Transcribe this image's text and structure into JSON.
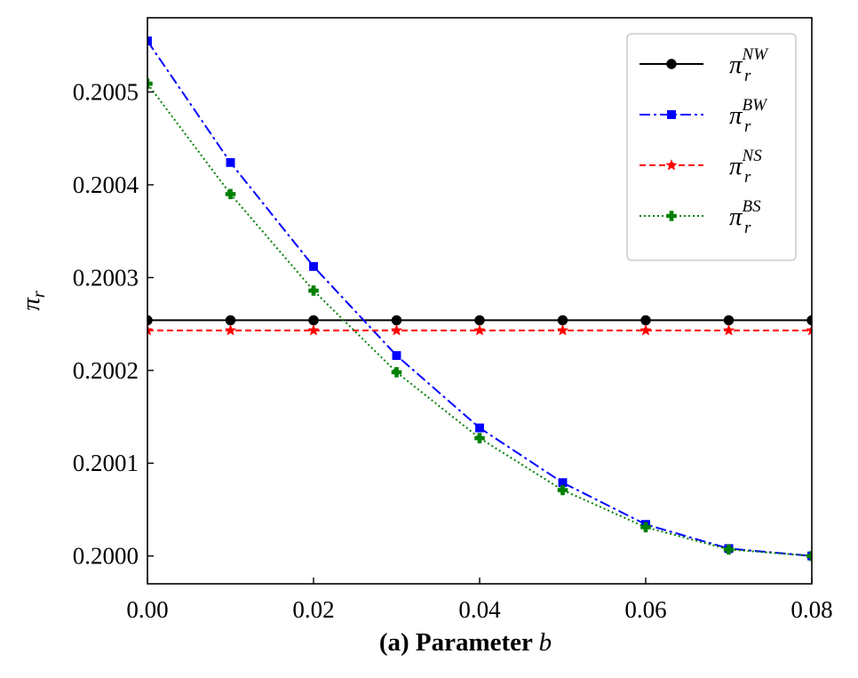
{
  "chart_data": {
    "type": "line",
    "xlabel_prefix": "(a) Parameter ",
    "xlabel_var": "b",
    "ylabel_base": "π",
    "ylabel_sub": "r",
    "xlim": [
      0.0,
      0.08
    ],
    "ylim": [
      0.19997,
      0.20058
    ],
    "xticks": [
      0.0,
      0.02,
      0.04,
      0.06,
      0.08
    ],
    "xtick_labels": [
      "0.00",
      "0.02",
      "0.04",
      "0.06",
      "0.08"
    ],
    "yticks": [
      0.2,
      0.2001,
      0.2002,
      0.2003,
      0.2004,
      0.2005
    ],
    "ytick_labels": [
      "0.2000",
      "0.2001",
      "0.2002",
      "0.2003",
      "0.2004",
      "0.2005"
    ],
    "grid": false,
    "legend_position": "top-right",
    "x": [
      0.0,
      0.01,
      0.02,
      0.03,
      0.04,
      0.05,
      0.06,
      0.07,
      0.08
    ],
    "series": [
      {
        "name_base": "π",
        "name_sub": "r",
        "name_sup": "NW",
        "color": "#000000",
        "dash": "",
        "marker": "circle",
        "values": [
          0.200254,
          0.200254,
          0.200254,
          0.200254,
          0.200254,
          0.200254,
          0.200254,
          0.200254,
          0.200254
        ]
      },
      {
        "name_base": "π",
        "name_sub": "r",
        "name_sup": "BW",
        "color": "#0000ff",
        "dash": "12 4 3 4",
        "marker": "square",
        "values": [
          0.200555,
          0.200424,
          0.200312,
          0.200216,
          0.200138,
          0.200079,
          0.200034,
          0.200008,
          0.2
        ]
      },
      {
        "name_base": "π",
        "name_sub": "r",
        "name_sup": "NS",
        "color": "#ff0000",
        "dash": "7 4",
        "marker": "star",
        "values": [
          0.200243,
          0.200243,
          0.200243,
          0.200243,
          0.200243,
          0.200243,
          0.200243,
          0.200243,
          0.200243
        ]
      },
      {
        "name_base": "π",
        "name_sub": "r",
        "name_sup": "BS",
        "color": "#008000",
        "dash": "2 3",
        "marker": "plus",
        "values": [
          0.200509,
          0.20039,
          0.200286,
          0.200198,
          0.200127,
          0.200071,
          0.200031,
          0.200007,
          0.2
        ]
      }
    ]
  }
}
